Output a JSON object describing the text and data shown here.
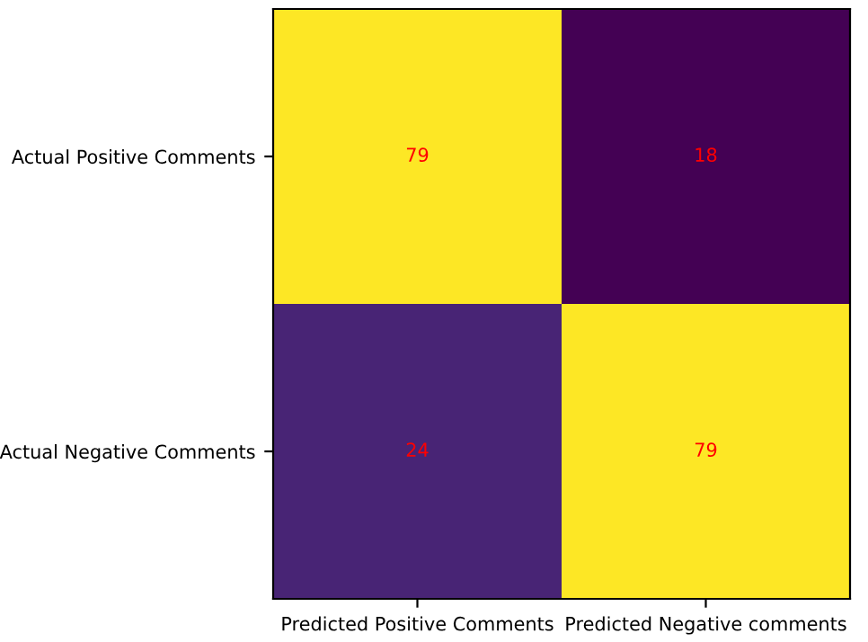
{
  "chart_data": {
    "type": "heatmap",
    "categories": [
      "Predicted Positive Comments",
      "Predicted Negative comments"
    ],
    "y_categories": [
      "Actual Positive Comments",
      "Actual Negative Comments"
    ],
    "cells": [
      [
        79,
        18
      ],
      [
        24,
        79
      ]
    ],
    "data_labels": true,
    "grid": false,
    "legend": false
  }
}
